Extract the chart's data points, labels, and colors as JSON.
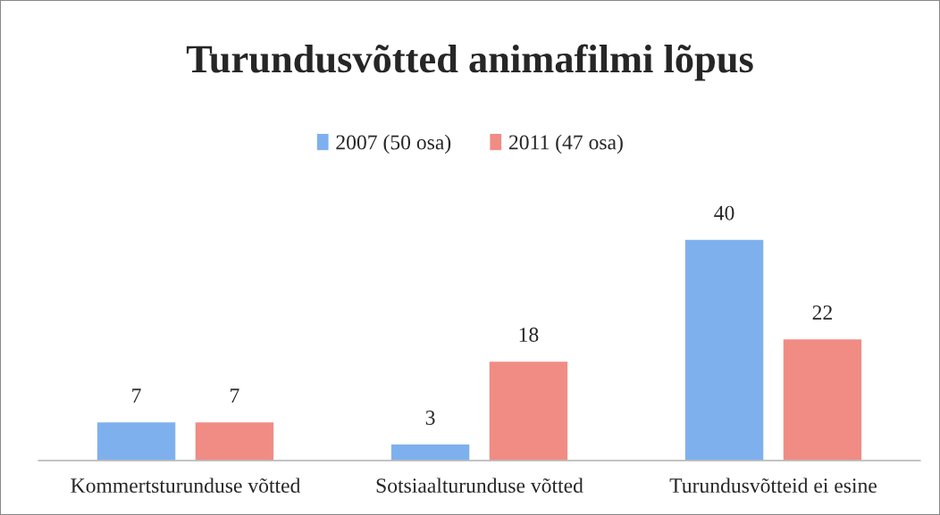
{
  "chart_data": {
    "type": "bar",
    "title": "Turundusvõtted animafilmi lõpus",
    "categories": [
      "Kommertsturunduse võtted",
      "Sotsiaalturunduse võtted",
      "Turundusvõtteid ei esine"
    ],
    "series": [
      {
        "name": "2007 (50 osa)",
        "color": "#7fb0ee",
        "values": [
          7,
          3,
          40
        ]
      },
      {
        "name": "2011 (47 osa)",
        "color": "#f08c84",
        "values": [
          7,
          18,
          22
        ]
      }
    ],
    "data_labels": true,
    "legend": "top",
    "grid": false
  }
}
